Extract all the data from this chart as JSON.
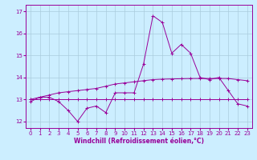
{
  "xlabel": "Windchill (Refroidissement éolien,°C)",
  "background_color": "#cceeff",
  "grid_color": "#aaccdd",
  "line_color": "#990099",
  "x_values": [
    0,
    1,
    2,
    3,
    4,
    5,
    6,
    7,
    8,
    9,
    10,
    11,
    12,
    13,
    14,
    15,
    16,
    17,
    18,
    19,
    20,
    21,
    22,
    23
  ],
  "windchill_values": [
    12.9,
    13.1,
    13.1,
    12.9,
    12.5,
    12.0,
    12.6,
    12.7,
    12.4,
    13.3,
    13.3,
    13.3,
    14.6,
    16.8,
    16.5,
    15.1,
    15.5,
    15.1,
    14.0,
    13.9,
    14.0,
    13.4,
    12.8,
    12.7
  ],
  "trend_flat_values": [
    13.0,
    13.0,
    13.0,
    13.0,
    13.0,
    13.0,
    13.0,
    13.0,
    13.0,
    13.0,
    13.0,
    13.0,
    13.0,
    13.0,
    13.0,
    13.0,
    13.0,
    13.0,
    13.0,
    13.0,
    13.0,
    13.0,
    13.0,
    13.0
  ],
  "trend_rise_values": [
    13.0,
    13.1,
    13.2,
    13.3,
    13.35,
    13.4,
    13.45,
    13.5,
    13.6,
    13.7,
    13.75,
    13.8,
    13.85,
    13.9,
    13.92,
    13.93,
    13.94,
    13.95,
    13.95,
    13.95,
    13.95,
    13.95,
    13.9,
    13.85
  ],
  "ylim": [
    11.7,
    17.3
  ],
  "xlim": [
    -0.5,
    23.5
  ],
  "yticks": [
    12,
    13,
    14,
    15,
    16,
    17
  ],
  "xticks": [
    0,
    1,
    2,
    3,
    4,
    5,
    6,
    7,
    8,
    9,
    10,
    11,
    12,
    13,
    14,
    15,
    16,
    17,
    18,
    19,
    20,
    21,
    22,
    23
  ],
  "tick_fontsize": 5.0,
  "xlabel_fontsize": 5.5,
  "marker": "+"
}
